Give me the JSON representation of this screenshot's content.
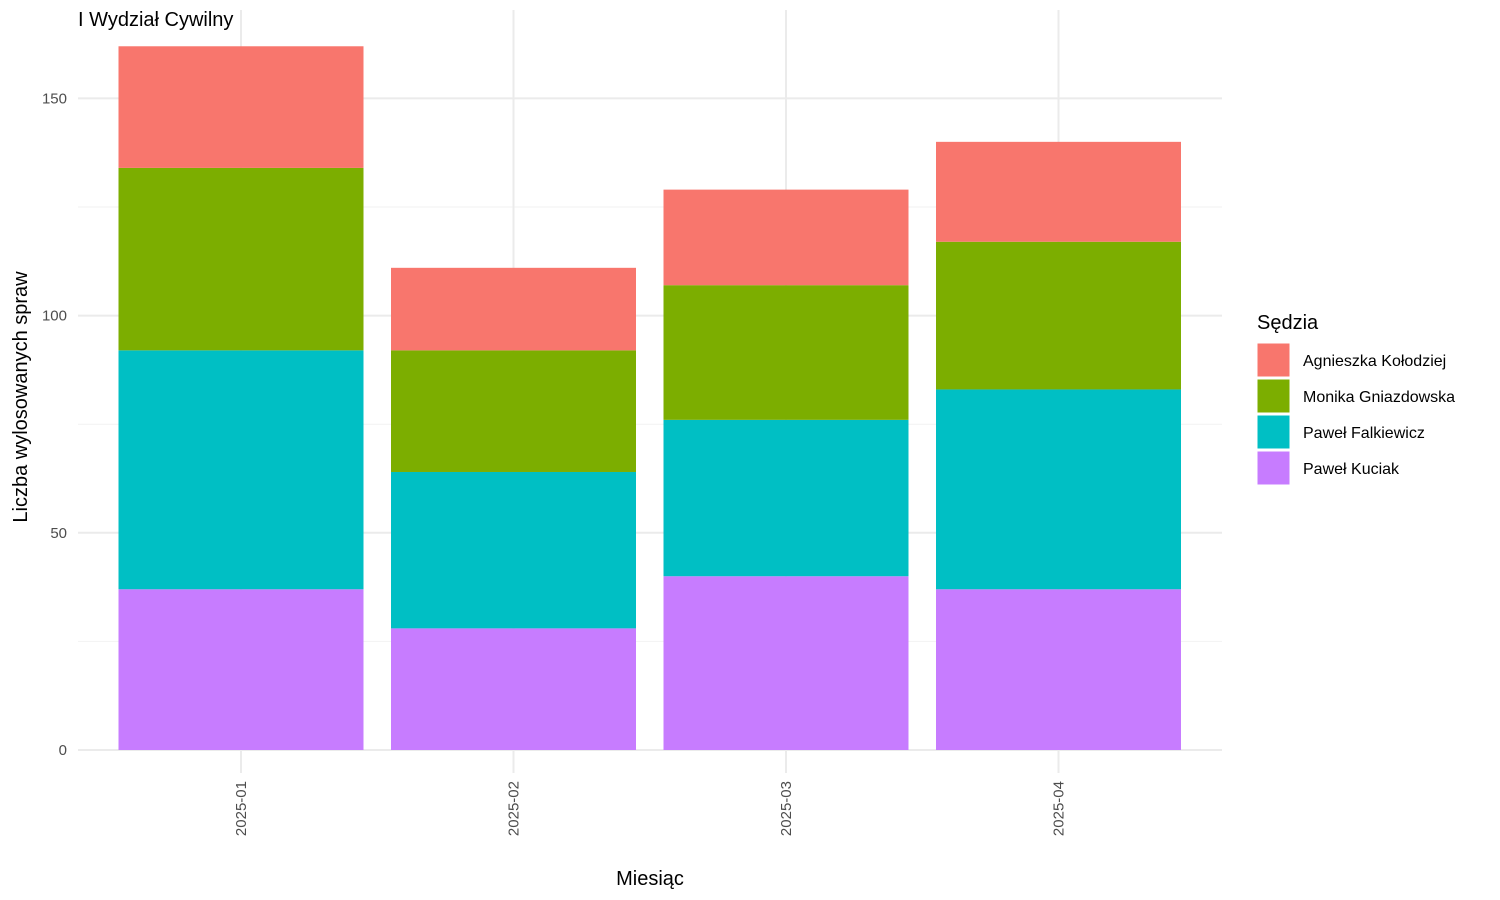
{
  "chart_data": {
    "type": "bar",
    "stacked": true,
    "title": "I Wydział Cywilny",
    "xlabel": "Miesiąc",
    "ylabel": "Liczba wylosowanych spraw",
    "categories": [
      "2025-01",
      "2025-02",
      "2025-03",
      "2025-04"
    ],
    "ylim": [
      0,
      162
    ],
    "yticks": [
      0,
      50,
      100,
      150
    ],
    "grid": true,
    "x_tick_rotation": "vertical",
    "legend": {
      "title": "Sędzia",
      "placement": "right"
    },
    "series": [
      {
        "name": "Paweł Kuciak",
        "color": "#C77CFF",
        "values": [
          37,
          28,
          40,
          37
        ]
      },
      {
        "name": "Paweł Falkiewicz",
        "color": "#00BFC4",
        "values": [
          55,
          36,
          36,
          46
        ]
      },
      {
        "name": "Monika Gniazdowska",
        "color": "#7CAE00",
        "values": [
          42,
          28,
          31,
          34
        ]
      },
      {
        "name": "Agnieszka Kołodziej",
        "color": "#F8766D",
        "values": [
          28,
          19,
          22,
          23
        ]
      }
    ],
    "legend_order": [
      "Agnieszka Kołodziej",
      "Monika Gniazdowska",
      "Paweł Falkiewicz",
      "Paweł Kuciak"
    ]
  }
}
